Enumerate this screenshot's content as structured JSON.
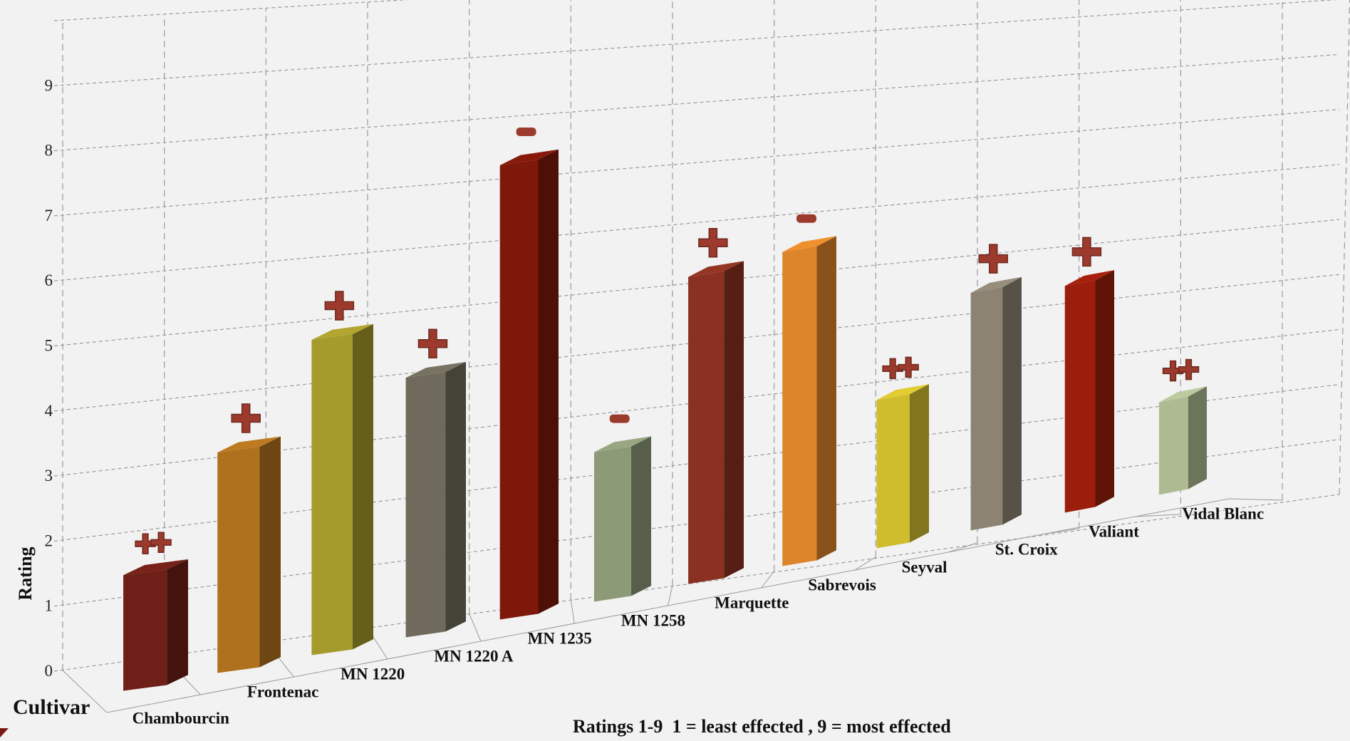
{
  "chart_data": {
    "type": "bar",
    "style": "3d-perspective",
    "categories": [
      "Chambourcin",
      "Frontenac",
      "MN 1220",
      "MN 1220 A",
      "MN 1235",
      "MN 1258",
      "Marquette",
      "Sabrevois",
      "Seyval",
      "St. Croix",
      "Valiant",
      "Vidal Blanc"
    ],
    "values": [
      2.0,
      3.9,
      5.7,
      4.8,
      8.6,
      2.9,
      6.1,
      6.4,
      3.1,
      5.1,
      5.0,
      2.1
    ],
    "bar_colors": [
      "#6e1f17",
      "#b0711f",
      "#a59a2c",
      "#6f6a5b",
      "#7e180b",
      "#8d9a78",
      "#8a3121",
      "#dd852b",
      "#d0bd2e",
      "#8c8373",
      "#9b1e0c",
      "#aebb92"
    ],
    "markers": [
      "++",
      "+",
      "+",
      "+",
      "-",
      "-",
      "+",
      "-",
      "++",
      "+",
      "+",
      "++"
    ],
    "marker_color": "#9b3a2d",
    "yticks": [
      0,
      1,
      2,
      3,
      4,
      5,
      6,
      7,
      8,
      9
    ],
    "ylim": [
      0,
      9
    ],
    "ylabel": "Rating",
    "xlabel": "Cultivar",
    "note": "Ratings 1-9  1 = least effected , 9 = most effected",
    "grid": true,
    "background": "#f2f2f2"
  }
}
